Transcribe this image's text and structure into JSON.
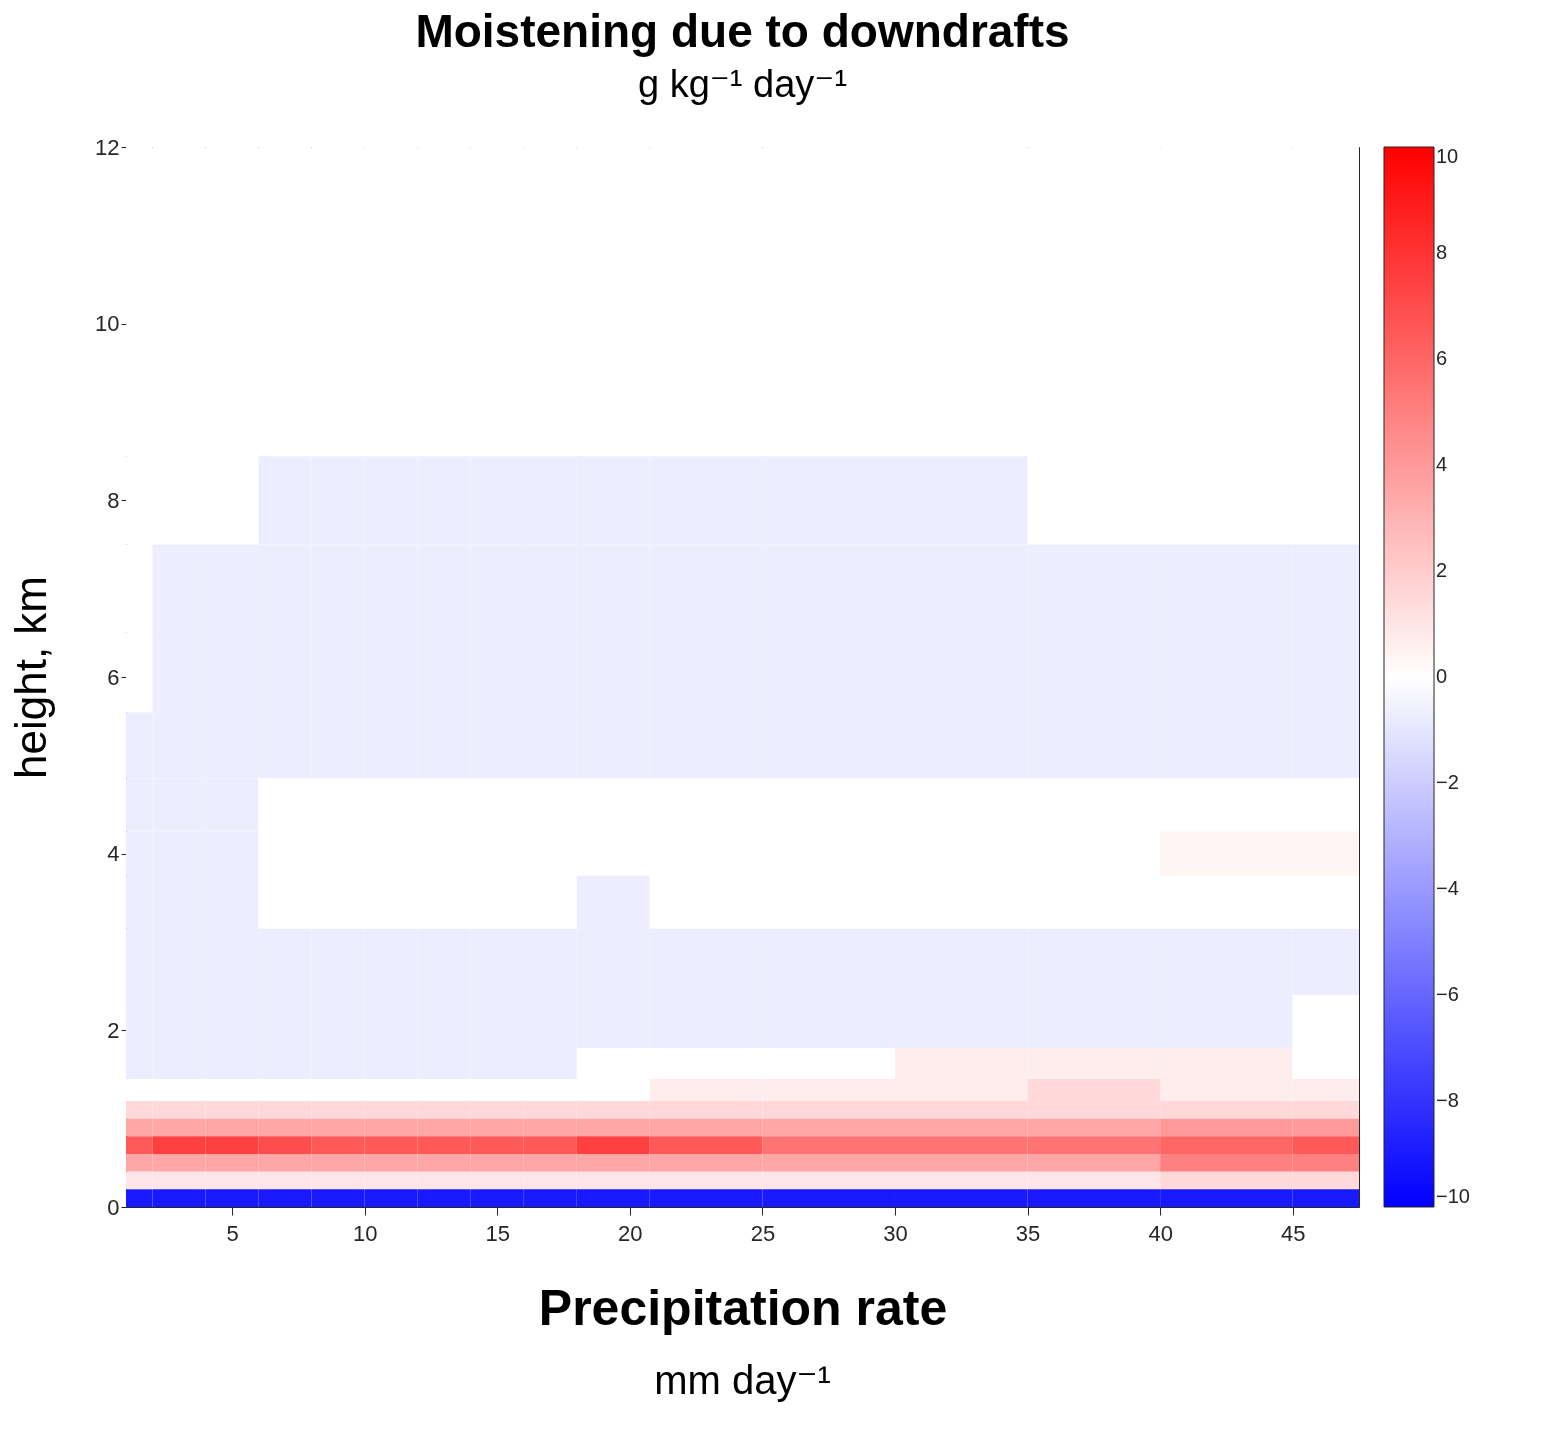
{
  "chart_data": {
    "type": "heatmap",
    "title": "Moistening due to downdrafts",
    "subtitle": "g kg⁻¹ day⁻¹",
    "xlabel": "Precipitation rate",
    "ylabel": "height, km",
    "annotations": [
      "mm day⁻¹"
    ],
    "x": [
      1,
      3,
      5,
      7,
      9,
      11,
      13,
      15,
      17,
      19,
      22.5,
      27.5,
      32.5,
      37.5,
      42.5,
      47.5
    ],
    "y": [
      11,
      9,
      8,
      7,
      6,
      5.2,
      4.5,
      4,
      3.5,
      2.8,
      2,
      1.6,
      1.3,
      1.1,
      0.9,
      0.7,
      0.5,
      0.3,
      0.1
    ],
    "cells": [
      [
        0,
        0,
        0,
        0,
        0,
        0,
        0,
        0,
        0,
        0,
        0,
        0,
        0,
        0,
        0,
        0
      ],
      [
        0,
        0,
        0,
        0,
        0,
        0,
        0,
        0,
        0,
        0,
        0,
        0,
        0,
        0,
        0,
        0
      ],
      [
        0,
        0,
        0,
        -0.7,
        -0.7,
        -0.7,
        -0.7,
        -0.7,
        -0.7,
        -0.7,
        -0.7,
        -0.7,
        -0.7,
        0,
        0,
        0
      ],
      [
        0,
        -0.7,
        -0.7,
        -0.7,
        -0.7,
        -0.7,
        -0.7,
        -0.7,
        -0.7,
        -0.7,
        -0.7,
        -0.7,
        -0.7,
        -0.7,
        -0.7,
        -0.7
      ],
      [
        0,
        -0.7,
        -0.7,
        -0.7,
        -0.7,
        -0.7,
        -0.7,
        -0.7,
        -0.7,
        -0.7,
        -0.7,
        -0.7,
        -0.7,
        -0.7,
        -0.7,
        -0.7
      ],
      [
        -0.7,
        -0.7,
        -0.7,
        -0.7,
        -0.7,
        -0.7,
        -0.7,
        -0.7,
        -0.7,
        -0.7,
        -0.7,
        -0.7,
        -0.7,
        -0.7,
        -0.7,
        -0.7
      ],
      [
        -0.7,
        -0.7,
        -0.7,
        0,
        0,
        0,
        0,
        0,
        0,
        0,
        0,
        0,
        0,
        0,
        0,
        0
      ],
      [
        -0.7,
        -0.7,
        -0.7,
        0,
        0,
        0,
        0,
        0,
        0,
        0,
        0,
        0,
        0,
        0,
        0.4,
        0.4
      ],
      [
        -0.7,
        -0.7,
        -0.7,
        0,
        0,
        0,
        0,
        0,
        0,
        -0.7,
        0,
        0,
        0,
        0,
        0,
        0
      ],
      [
        -0.7,
        -0.7,
        -0.7,
        -0.7,
        -0.7,
        -0.7,
        -0.7,
        -0.7,
        -0.7,
        -0.7,
        -0.7,
        -0.7,
        -0.7,
        -0.7,
        -0.7,
        -0.7
      ],
      [
        -0.7,
        -0.7,
        -0.7,
        -0.7,
        -0.7,
        -0.7,
        -0.7,
        -0.7,
        -0.7,
        -0.7,
        -0.7,
        -0.7,
        -0.7,
        -0.7,
        -0.7,
        0
      ],
      [
        -0.7,
        -0.7,
        -0.7,
        -0.7,
        -0.7,
        -0.7,
        -0.7,
        -0.7,
        -0.7,
        0,
        0,
        0,
        0.7,
        0.7,
        0.7,
        0
      ],
      [
        0,
        0,
        0,
        0,
        0,
        0,
        0,
        0,
        0,
        0,
        0.7,
        0.7,
        0.7,
        1.5,
        0.7,
        0.7
      ],
      [
        1.5,
        1.5,
        1.5,
        1.5,
        1.5,
        1.5,
        1.5,
        1.5,
        1.5,
        1.5,
        1.5,
        1.5,
        1.5,
        1.5,
        1.5,
        1.5
      ],
      [
        3.5,
        3.5,
        3.5,
        3.5,
        3.5,
        3.5,
        3.5,
        3.5,
        3.5,
        3.5,
        3.5,
        3.5,
        3.5,
        3.5,
        4,
        4
      ],
      [
        6.5,
        7.5,
        7.5,
        7,
        6.5,
        6.5,
        6.5,
        6.5,
        6.5,
        7.5,
        6.5,
        5.5,
        5.5,
        5.5,
        6,
        6.5
      ],
      [
        3.5,
        3.5,
        3.5,
        3.5,
        3.5,
        3.5,
        3.5,
        3.5,
        3.5,
        3.5,
        3.5,
        3.5,
        3.5,
        3.5,
        5,
        5
      ],
      [
        1,
        1,
        1,
        1,
        1,
        1,
        1,
        1,
        1,
        1,
        1,
        1,
        1,
        1,
        1.5,
        1.5
      ],
      [
        -9,
        -9,
        -9,
        -9,
        -9,
        -9,
        -9,
        -9,
        -9,
        -9,
        -9,
        -9,
        -9,
        -9,
        -9,
        -9
      ]
    ],
    "xlim": [
      1,
      47.5
    ],
    "xticks": [
      5,
      10,
      15,
      20,
      25,
      30,
      35,
      40,
      45
    ],
    "ylim": [
      0,
      12
    ],
    "yticks": [
      0,
      2,
      4,
      6,
      8,
      10,
      12
    ],
    "clim": [
      -10,
      10
    ],
    "cticks": [
      -10,
      -8,
      -6,
      -4,
      -2,
      0,
      2,
      4,
      6,
      8,
      10
    ]
  }
}
